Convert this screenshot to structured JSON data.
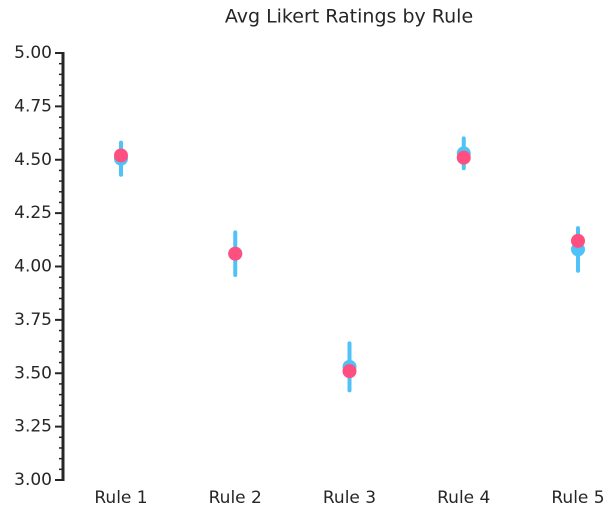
{
  "chart_data": {
    "type": "errorbar",
    "title": "Avg Likert Ratings by Rule",
    "categories": [
      "Rule 1",
      "Rule 2",
      "Rule 3",
      "Rule 4",
      "Rule 5"
    ],
    "series": [
      {
        "color": "#4fc3f7",
        "values": [
          4.505,
          4.06,
          3.53,
          4.53,
          4.08
        ],
        "errors": [
          0.075,
          0.1,
          0.11,
          0.07,
          0.1
        ]
      },
      {
        "color": "#ff4f81",
        "values": [
          4.52,
          4.06,
          3.51,
          4.51,
          4.12
        ]
      }
    ],
    "ylim": [
      3,
      5
    ],
    "yticks": [
      {
        "value": 3,
        "label": "3.00"
      },
      3.25,
      {
        "value": 3.5,
        "label": "3.50"
      },
      3.75,
      {
        "value": 4,
        "label": "4.00"
      },
      4.25,
      {
        "value": 4.5,
        "label": "4.50"
      },
      4.75,
      {
        "value": 5,
        "label": "5.00"
      }
    ],
    "minor_yticks": [
      3.05,
      3.1,
      3.15,
      3.2,
      3.3,
      3.35,
      3.4,
      3.45,
      3.55,
      3.6,
      3.65,
      3.7,
      3.8,
      3.85,
      3.9,
      3.95,
      4.05,
      4.1,
      4.15,
      4.2,
      4.3,
      4.35,
      4.4,
      4.45,
      4.55,
      4.6,
      4.65,
      4.7,
      4.8,
      4.85,
      4.9,
      4.95
    ]
  }
}
